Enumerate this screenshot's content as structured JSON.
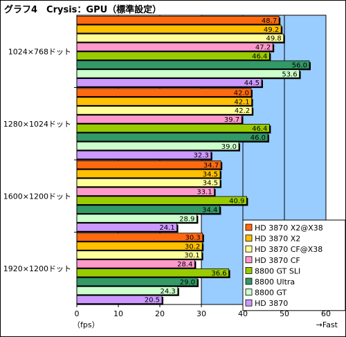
{
  "chart_data": {
    "type": "bar",
    "orientation": "horizontal",
    "title": "グラフ4　Crysis：GPU（標準設定）",
    "xlabel": "（fps）",
    "xlabel_right": "→Fast",
    "xlim": [
      0,
      60
    ],
    "xticks": [
      "0",
      "10",
      "20",
      "30",
      "40",
      "50",
      "60"
    ],
    "grid": true,
    "legend_position": "bottom-right",
    "categories": [
      "1024×768ドット",
      "1280×1024ドット",
      "1600×1200ドット",
      "1920×1200ドット"
    ],
    "series": [
      {
        "name": "HD 3870 X2@X38",
        "color": "#ff6a10",
        "values": [
          48.7,
          42.0,
          34.7,
          30.3
        ]
      },
      {
        "name": "HD 3870 X2",
        "color": "#ffc000",
        "values": [
          49.2,
          42.1,
          34.5,
          30.2
        ]
      },
      {
        "name": "HD 3870 CF@X38",
        "color": "#ffff99",
        "values": [
          49.8,
          42.2,
          34.5,
          30.1
        ]
      },
      {
        "name": "HD 3870 CF",
        "color": "#ff99cc",
        "values": [
          47.2,
          39.7,
          33.1,
          28.4
        ]
      },
      {
        "name": "8800 GT SLI",
        "color": "#99cc00",
        "values": [
          46.4,
          46.4,
          40.9,
          36.6
        ]
      },
      {
        "name": "8800 Ultra",
        "color": "#339966",
        "values": [
          56.0,
          46.0,
          34.4,
          29.0
        ]
      },
      {
        "name": "8800 GT",
        "color": "#ccffcc",
        "values": [
          53.6,
          39.0,
          28.9,
          24.3
        ]
      },
      {
        "name": "HD 3870",
        "color": "#cc99ff",
        "values": [
          44.5,
          32.3,
          24.1,
          20.5
        ]
      }
    ],
    "colors": {
      "highlight_region": "#99ccff",
      "plot_background": "#ffffff"
    }
  }
}
